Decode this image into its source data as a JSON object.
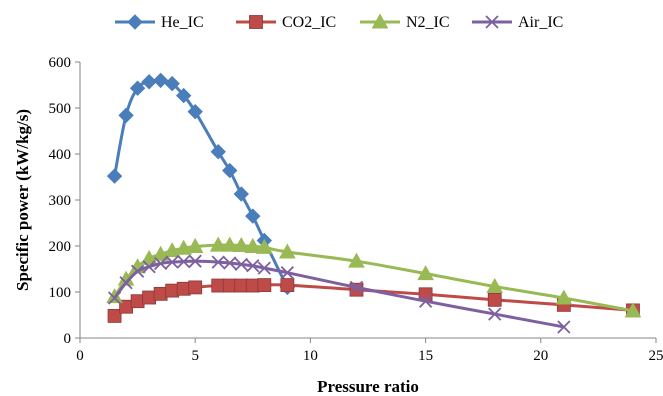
{
  "chart_data": {
    "type": "line",
    "title": "",
    "xlabel": "Pressure ratio",
    "ylabel": "Specific power (kW/kg/s)",
    "xlim": [
      0,
      25
    ],
    "ylim": [
      0,
      600
    ],
    "xticks": [
      0,
      5,
      10,
      15,
      20,
      25
    ],
    "yticks": [
      0,
      100,
      200,
      300,
      400,
      500,
      600
    ],
    "grid": false,
    "legend": "top",
    "series": [
      {
        "name": "He_IC",
        "color": "#4a7ebb",
        "marker": "diamond",
        "x": [
          1.5,
          2,
          2.5,
          3,
          3.5,
          4,
          4.5,
          5,
          6,
          6.5,
          7,
          7.5,
          8,
          9
        ],
        "y": [
          352,
          484,
          543,
          557,
          560,
          553,
          527,
          492,
          405,
          364,
          313,
          265,
          212,
          110
        ]
      },
      {
        "name": "CO2_IC",
        "color": "#be4b48",
        "marker": "square",
        "x": [
          1.5,
          2,
          2.5,
          3,
          3.5,
          4,
          4.5,
          5,
          6,
          6.5,
          7,
          7.5,
          8,
          9,
          12,
          15,
          18,
          21,
          24
        ],
        "y": [
          48,
          68,
          80,
          88,
          96,
          103,
          107,
          110,
          114,
          114,
          114,
          114,
          115,
          115,
          105,
          95,
          83,
          72,
          60
        ]
      },
      {
        "name": "N2_IC",
        "color": "#98b954",
        "marker": "triangle",
        "x": [
          1.5,
          2,
          2.5,
          3,
          3.5,
          4,
          4.5,
          5,
          6,
          6.5,
          7,
          7.5,
          8,
          9,
          12,
          15,
          18,
          21,
          24
        ],
        "y": [
          90,
          128,
          155,
          173,
          182,
          190,
          195,
          199,
          202,
          202,
          201,
          199,
          197,
          187,
          167,
          140,
          112,
          87,
          59
        ]
      },
      {
        "name": "Air_IC",
        "color": "#7d60a0",
        "marker": "x",
        "x": [
          1.5,
          2,
          2.5,
          3,
          3.5,
          4,
          4.5,
          5,
          6,
          6.5,
          7,
          7.5,
          8,
          9,
          12,
          15,
          18,
          21
        ],
        "y": [
          87,
          120,
          145,
          155,
          162,
          165,
          166,
          167,
          165,
          163,
          160,
          157,
          152,
          142,
          110,
          80,
          52,
          24
        ]
      }
    ]
  }
}
